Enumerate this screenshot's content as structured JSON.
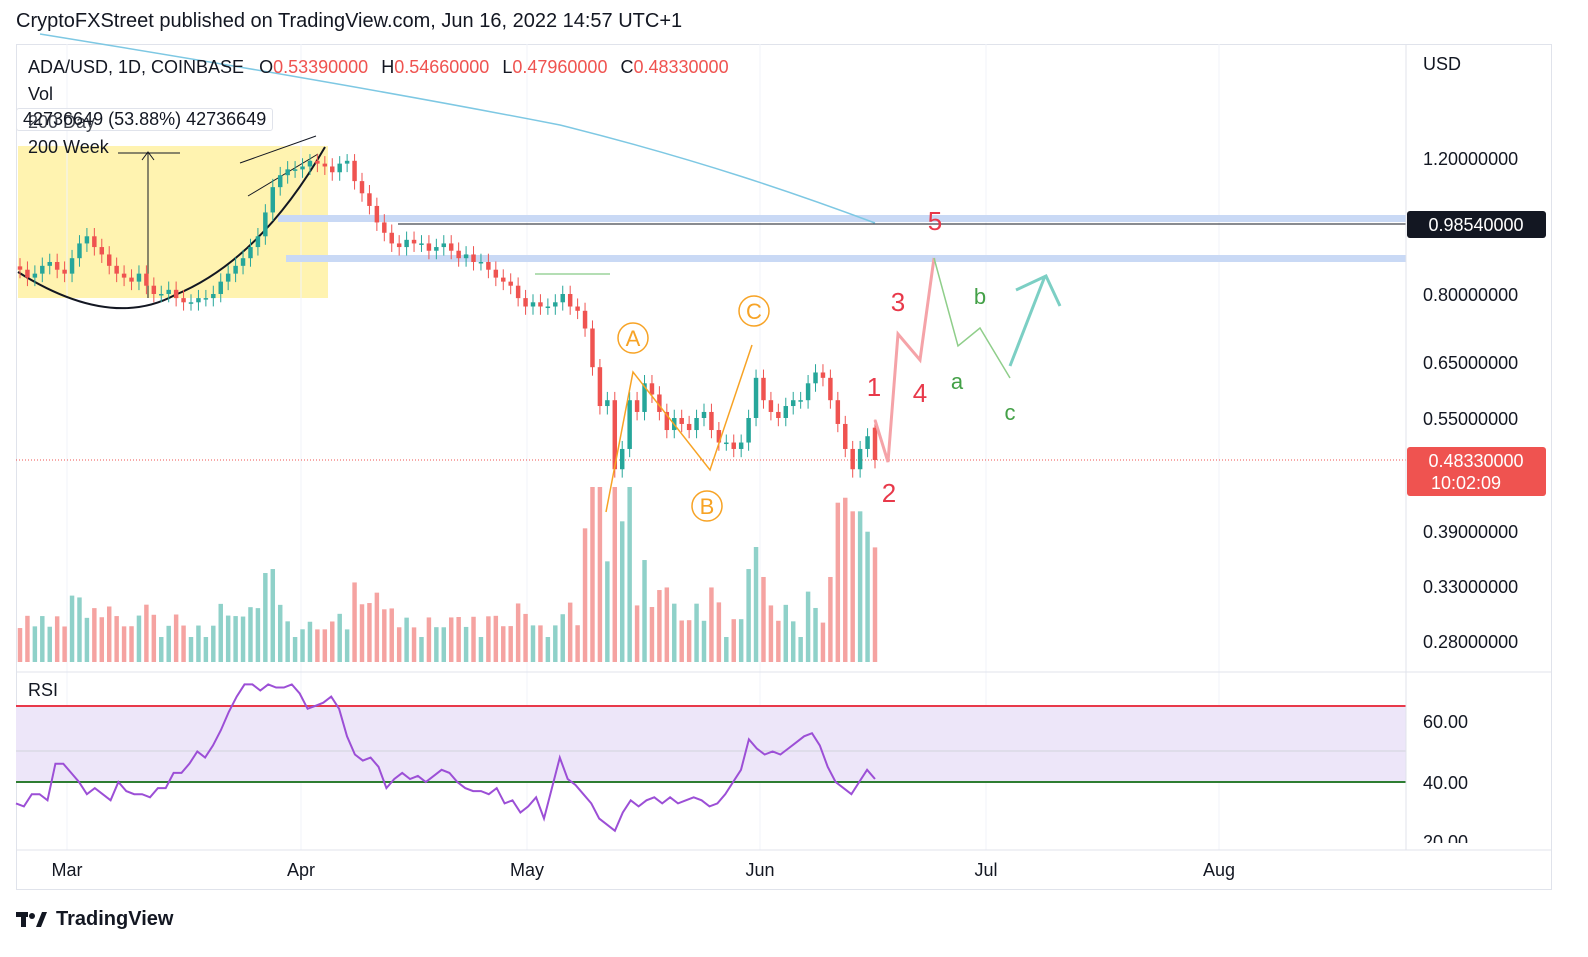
{
  "header": {
    "published_line": "CryptoFXStreet published on TradingView.com, Jun 16, 2022 14:57 UTC+1"
  },
  "legend": {
    "symbol": "ADA/USD, 1D, COINBASE",
    "o_label": "O",
    "o_value": "0.53390000",
    "h_label": "H",
    "h_value": "0.54660000",
    "l_label": "L",
    "l_value": "0.47960000",
    "c_label": "C",
    "c_value": "0.48330000",
    "vol_label": "Vol",
    "vol_values": "42736649 (53.88%) 42736649",
    "ma_200_day": "200 Day",
    "ma_200_week": "200 Week"
  },
  "price_axis": {
    "currency": "USD",
    "labels": [
      "1.20000000",
      "0.80000000",
      "0.65000000",
      "0.55000000",
      "0.39000000",
      "0.33000000",
      "0.28000000"
    ],
    "resistance_label": "0.98540000",
    "last_price_label": "0.48330000",
    "countdown_label": "10:02:09"
  },
  "rsi": {
    "title": "RSI",
    "labels": [
      "60.00",
      "40.00",
      "20.00"
    ],
    "upper_band": 70,
    "lower_band": 30,
    "overbought_line": 70,
    "oversold_line": 40
  },
  "time_axis": {
    "labels": [
      "Mar",
      "Apr",
      "May",
      "Jun",
      "Jul",
      "Aug"
    ]
  },
  "annotations": {
    "abc": [
      "A",
      "B",
      "C"
    ],
    "impulse": [
      "1",
      "2",
      "3",
      "4",
      "5"
    ],
    "corrective": [
      "a",
      "b",
      "c"
    ]
  },
  "colors": {
    "up": "#26a69a",
    "down": "#ef5350",
    "vol_up": "#8fd1c9",
    "vol_down": "#f5a3a1",
    "ma_line": "#7ec8e3",
    "rsi_line": "#9c4fd6",
    "abc_color": "#f7a325",
    "impulse_color": "#e8394a",
    "corrective_color": "#43a047",
    "highlight_band": "#fff3b0",
    "hline_band": "#c9d9f5"
  },
  "footer": {
    "brand": "TradingView"
  },
  "chart_data": {
    "type": "candlestick",
    "symbol": "ADA/USD",
    "interval": "1D",
    "exchange": "COINBASE",
    "last": {
      "open": 0.5339,
      "high": 0.5466,
      "low": 0.4796,
      "close": 0.4833
    },
    "key_levels": [
      0.9854,
      0.4833
    ],
    "y_axis_ticks": [
      1.2,
      0.8,
      0.65,
      0.55,
      0.39,
      0.33,
      0.28
    ],
    "x_axis_ticks": [
      "Mar",
      "Apr",
      "May",
      "Jun",
      "Jul",
      "Aug"
    ],
    "closes": [
      0.86,
      0.84,
      0.85,
      0.87,
      0.88,
      0.86,
      0.85,
      0.89,
      0.93,
      0.95,
      0.92,
      0.9,
      0.87,
      0.85,
      0.84,
      0.83,
      0.85,
      0.82,
      0.8,
      0.8,
      0.81,
      0.79,
      0.78,
      0.78,
      0.79,
      0.79,
      0.8,
      0.83,
      0.85,
      0.87,
      0.89,
      0.92,
      0.95,
      1.02,
      1.1,
      1.14,
      1.16,
      1.16,
      1.17,
      1.19,
      1.18,
      1.17,
      1.15,
      1.18,
      1.19,
      1.12,
      1.08,
      1.04,
      0.99,
      0.96,
      0.93,
      0.92,
      0.94,
      0.93,
      0.93,
      0.91,
      0.92,
      0.93,
      0.91,
      0.89,
      0.9,
      0.88,
      0.88,
      0.86,
      0.84,
      0.83,
      0.82,
      0.79,
      0.77,
      0.78,
      0.77,
      0.77,
      0.78,
      0.8,
      0.77,
      0.76,
      0.72,
      0.64,
      0.57,
      0.58,
      0.47,
      0.5,
      0.58,
      0.56,
      0.61,
      0.59,
      0.56,
      0.53,
      0.55,
      0.54,
      0.53,
      0.55,
      0.56,
      0.53,
      0.51,
      0.51,
      0.5,
      0.51,
      0.55,
      0.62,
      0.58,
      0.56,
      0.55,
      0.57,
      0.58,
      0.58,
      0.61,
      0.63,
      0.62,
      0.58,
      0.54,
      0.5,
      0.47,
      0.5,
      0.52,
      0.4833
    ],
    "rsi_values": [
      33,
      32,
      36,
      36,
      34,
      46,
      46,
      43,
      40,
      36,
      38,
      36,
      34,
      40,
      37,
      36,
      36,
      35,
      38,
      38,
      43,
      43,
      46,
      50,
      48,
      52,
      57,
      63,
      68,
      72,
      72,
      70,
      72,
      71,
      71,
      72,
      69,
      64,
      65,
      66,
      68,
      64,
      55,
      49,
      47,
      48,
      45,
      38,
      41,
      43,
      41,
      42,
      40,
      42,
      44,
      43,
      40,
      38,
      37,
      37,
      36,
      38,
      33,
      34,
      30,
      32,
      35,
      28,
      38,
      48,
      41,
      39,
      36,
      33,
      28,
      26,
      24,
      30,
      34,
      32,
      34,
      35,
      33,
      35,
      33,
      34,
      35,
      34,
      32,
      33,
      36,
      40,
      44,
      54,
      51,
      49,
      50,
      49,
      51,
      53,
      55,
      56,
      52,
      45,
      40,
      38,
      36,
      40,
      44,
      41
    ]
  }
}
